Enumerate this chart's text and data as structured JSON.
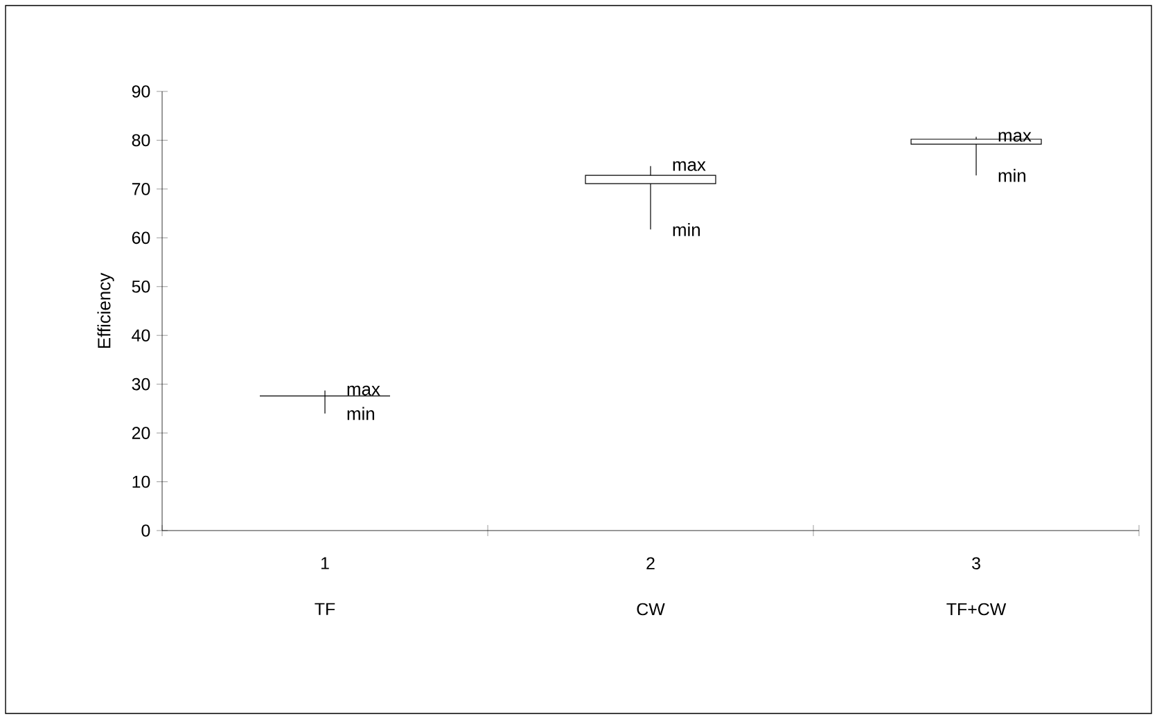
{
  "chart_data": {
    "type": "candlestick",
    "ylabel": "Efficiency",
    "categories": [
      "TF",
      "CW",
      "TF+CW"
    ],
    "ohlc": [
      [
        27.6,
        28.7,
        24.0,
        27.6
      ],
      [
        71.1,
        74.7,
        61.7,
        72.8
      ],
      [
        79.2,
        80.7,
        72.8,
        80.2
      ]
    ],
    "ylim": [
      0,
      90
    ],
    "yticks": [
      0,
      10,
      20,
      30,
      40,
      50,
      60,
      70,
      80,
      90
    ],
    "annotations": [
      {
        "text": "max",
        "x": "TF",
        "y": 28.7
      },
      {
        "text": "min",
        "x": "TF",
        "y": 24.0
      },
      {
        "text": "max",
        "x": "CW",
        "y": 74.7
      },
      {
        "text": "min",
        "x": "CW",
        "y": 61.7
      },
      {
        "text": "max",
        "x": "TF+CW",
        "y": 80.7
      },
      {
        "text": "min",
        "x": "TF+CW",
        "y": 72.8
      },
      "1",
      "2",
      "3"
    ]
  }
}
